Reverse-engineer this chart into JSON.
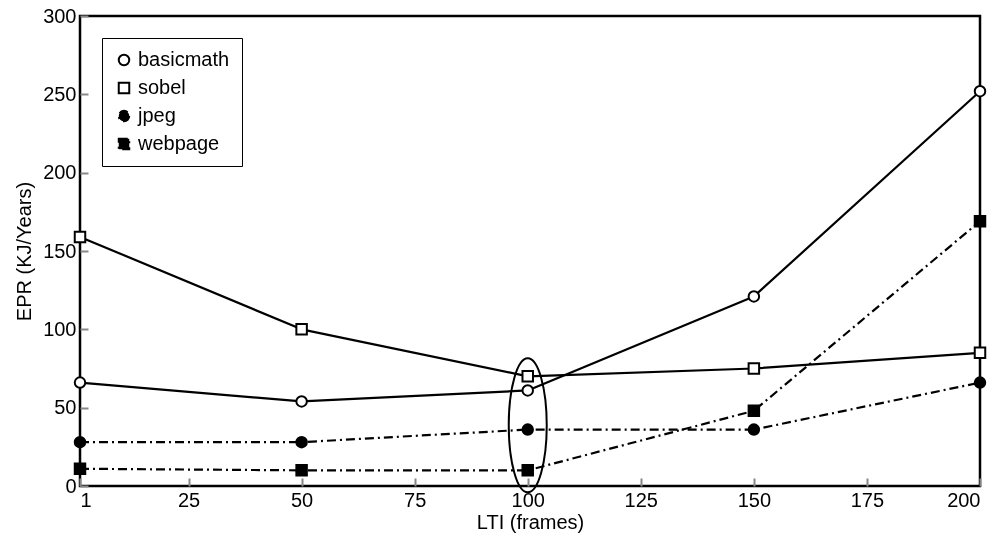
{
  "chart_data": {
    "type": "line",
    "xlabel": "LTI (frames)",
    "ylabel": "EPR (KJ/Years)",
    "x": [
      1,
      50,
      100,
      150,
      200
    ],
    "xlim": [
      1,
      200
    ],
    "xticks": [
      1,
      25,
      50,
      75,
      100,
      125,
      150,
      175,
      200
    ],
    "ylim": [
      0,
      300
    ],
    "yticks": [
      0,
      50,
      100,
      150,
      200,
      250,
      300
    ],
    "grid": false,
    "legend": "top left",
    "series": [
      {
        "name": "basicmath",
        "color": "#000000",
        "marker": "circle",
        "line_style": "solid",
        "values": [
          66,
          54,
          61,
          121,
          252
        ]
      },
      {
        "name": "sobel",
        "color": "#000000",
        "marker": "square",
        "line_style": "solid",
        "values": [
          159,
          100,
          70,
          75,
          85
        ]
      },
      {
        "name": "jpeg",
        "color": "#000000",
        "marker": "circle",
        "line_style": "dashed",
        "values": [
          28,
          28,
          36,
          36,
          66
        ]
      },
      {
        "name": "webpage",
        "color": "#000000",
        "marker": "square",
        "line_style": "dashed",
        "values": [
          11,
          10,
          10,
          48,
          169
        ]
      }
    ]
  }
}
